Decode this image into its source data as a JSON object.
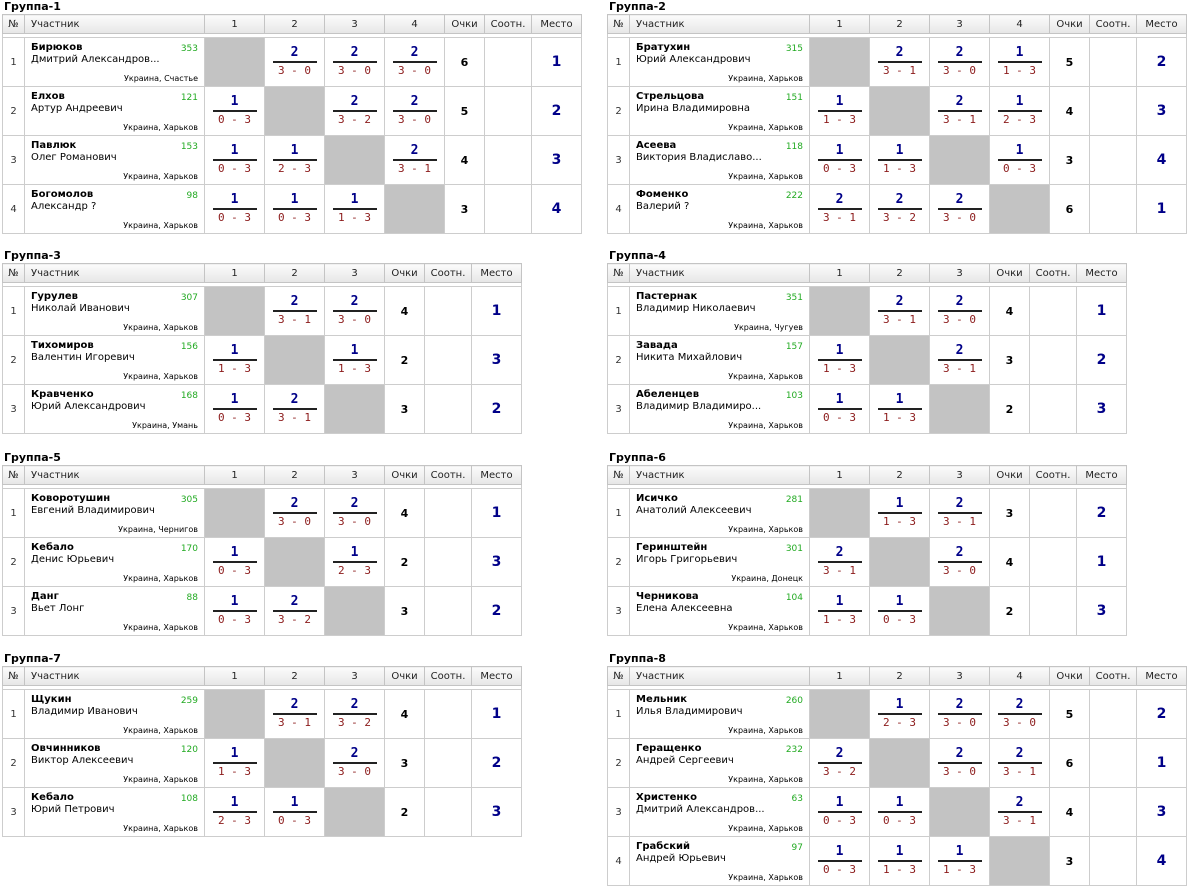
{
  "headers": {
    "no": "№",
    "participant": "Участник",
    "points": "Очки",
    "ratio": "Соотн.",
    "place": "Место"
  },
  "groups": [
    {
      "title": "Группа-1",
      "players": [
        {
          "no": "1",
          "name": "Бирюков",
          "first": "Дмитрий Александров...",
          "rating": "353",
          "loc": "Украина, Счастье",
          "scores": [
            null,
            [
              "2",
              "3 - 0"
            ],
            [
              "2",
              "3 - 0"
            ],
            [
              "2",
              "3 - 0"
            ]
          ],
          "points": "6",
          "ratio": "",
          "place": "1"
        },
        {
          "no": "2",
          "name": "Елхов",
          "first": "Артур Андреевич",
          "rating": "121",
          "loc": "Украина, Харьков",
          "scores": [
            [
              "1",
              "0 - 3"
            ],
            null,
            [
              "2",
              "3 - 2"
            ],
            [
              "2",
              "3 - 0"
            ]
          ],
          "points": "5",
          "ratio": "",
          "place": "2"
        },
        {
          "no": "3",
          "name": "Павлюк",
          "first": "Олег Романович",
          "rating": "153",
          "loc": "Украина, Харьков",
          "scores": [
            [
              "1",
              "0 - 3"
            ],
            [
              "1",
              "2 - 3"
            ],
            null,
            [
              "2",
              "3 - 1"
            ]
          ],
          "points": "4",
          "ratio": "",
          "place": "3"
        },
        {
          "no": "4",
          "name": "Богомолов",
          "first": "Александр ?",
          "rating": "98",
          "loc": "Украина, Харьков",
          "scores": [
            [
              "1",
              "0 - 3"
            ],
            [
              "1",
              "0 - 3"
            ],
            [
              "1",
              "1 - 3"
            ],
            null
          ],
          "points": "3",
          "ratio": "",
          "place": "4"
        }
      ]
    },
    {
      "title": "Группа-2",
      "players": [
        {
          "no": "1",
          "name": "Братухин",
          "first": "Юрий Александрович",
          "rating": "315",
          "loc": "Украина, Харьков",
          "scores": [
            null,
            [
              "2",
              "3 - 1"
            ],
            [
              "2",
              "3 - 0"
            ],
            [
              "1",
              "1 - 3"
            ]
          ],
          "points": "5",
          "ratio": "",
          "place": "2"
        },
        {
          "no": "2",
          "name": "Стрельцова",
          "first": "Ирина Владимировна",
          "rating": "151",
          "loc": "Украина, Харьков",
          "scores": [
            [
              "1",
              "1 - 3"
            ],
            null,
            [
              "2",
              "3 - 1"
            ],
            [
              "1",
              "2 - 3"
            ]
          ],
          "points": "4",
          "ratio": "",
          "place": "3"
        },
        {
          "no": "3",
          "name": "Асеева",
          "first": "Виктория Владиславо...",
          "rating": "118",
          "loc": "Украина, Харьков",
          "scores": [
            [
              "1",
              "0 - 3"
            ],
            [
              "1",
              "1 - 3"
            ],
            null,
            [
              "1",
              "0 - 3"
            ]
          ],
          "points": "3",
          "ratio": "",
          "place": "4"
        },
        {
          "no": "4",
          "name": "Фоменко",
          "first": "Валерий ?",
          "rating": "222",
          "loc": "Украина, Харьков",
          "scores": [
            [
              "2",
              "3 - 1"
            ],
            [
              "2",
              "3 - 2"
            ],
            [
              "2",
              "3 - 0"
            ],
            null
          ],
          "points": "6",
          "ratio": "",
          "place": "1"
        }
      ]
    },
    {
      "title": "Группа-3",
      "players": [
        {
          "no": "1",
          "name": "Гурулев",
          "first": "Николай Иванович",
          "rating": "307",
          "loc": "Украина, Харьков",
          "scores": [
            null,
            [
              "2",
              "3 - 1"
            ],
            [
              "2",
              "3 - 0"
            ]
          ],
          "points": "4",
          "ratio": "",
          "place": "1"
        },
        {
          "no": "2",
          "name": "Тихомиров",
          "first": "Валентин Игоревич",
          "rating": "156",
          "loc": "Украина, Харьков",
          "scores": [
            [
              "1",
              "1 - 3"
            ],
            null,
            [
              "1",
              "1 - 3"
            ]
          ],
          "points": "2",
          "ratio": "",
          "place": "3"
        },
        {
          "no": "3",
          "name": "Кравченко",
          "first": "Юрий Александрович",
          "rating": "168",
          "loc": "Украина, Умань",
          "scores": [
            [
              "1",
              "0 - 3"
            ],
            [
              "2",
              "3 - 1"
            ],
            null
          ],
          "points": "3",
          "ratio": "",
          "place": "2"
        }
      ]
    },
    {
      "title": "Группа-4",
      "players": [
        {
          "no": "1",
          "name": "Пастернак",
          "first": "Владимир Николаевич",
          "rating": "351",
          "loc": "Украина, Чугуев",
          "scores": [
            null,
            [
              "2",
              "3 - 1"
            ],
            [
              "2",
              "3 - 0"
            ]
          ],
          "points": "4",
          "ratio": "",
          "place": "1"
        },
        {
          "no": "2",
          "name": "Завада",
          "first": "Никита Михайлович",
          "rating": "157",
          "loc": "Украина, Харьков",
          "scores": [
            [
              "1",
              "1 - 3"
            ],
            null,
            [
              "2",
              "3 - 1"
            ]
          ],
          "points": "3",
          "ratio": "",
          "place": "2"
        },
        {
          "no": "3",
          "name": "Абеленцев",
          "first": "Владимир Владимиро...",
          "rating": "103",
          "loc": "Украина, Харьков",
          "scores": [
            [
              "1",
              "0 - 3"
            ],
            [
              "1",
              "1 - 3"
            ],
            null
          ],
          "points": "2",
          "ratio": "",
          "place": "3"
        }
      ]
    },
    {
      "title": "Группа-5",
      "players": [
        {
          "no": "1",
          "name": "Коворотушин",
          "first": "Евгений Владимирович",
          "rating": "305",
          "loc": "Украина, Чернигов",
          "scores": [
            null,
            [
              "2",
              "3 - 0"
            ],
            [
              "2",
              "3 - 0"
            ]
          ],
          "points": "4",
          "ratio": "",
          "place": "1"
        },
        {
          "no": "2",
          "name": "Кебало",
          "first": "Денис Юрьевич",
          "rating": "170",
          "loc": "Украина, Харьков",
          "scores": [
            [
              "1",
              "0 - 3"
            ],
            null,
            [
              "1",
              "2 - 3"
            ]
          ],
          "points": "2",
          "ratio": "",
          "place": "3"
        },
        {
          "no": "3",
          "name": "Данг",
          "first": "Вьет Лонг",
          "rating": "88",
          "loc": "Украина, Харьков",
          "scores": [
            [
              "1",
              "0 - 3"
            ],
            [
              "2",
              "3 - 2"
            ],
            null
          ],
          "points": "3",
          "ratio": "",
          "place": "2"
        }
      ]
    },
    {
      "title": "Группа-6",
      "players": [
        {
          "no": "1",
          "name": "Исичко",
          "first": "Анатолий Алексеевич",
          "rating": "281",
          "loc": "Украина, Харьков",
          "scores": [
            null,
            [
              "1",
              "1 - 3"
            ],
            [
              "2",
              "3 - 1"
            ]
          ],
          "points": "3",
          "ratio": "",
          "place": "2"
        },
        {
          "no": "2",
          "name": "Геринштейн",
          "first": "Игорь Григорьевич",
          "rating": "301",
          "loc": "Украина, Донецк",
          "scores": [
            [
              "2",
              "3 - 1"
            ],
            null,
            [
              "2",
              "3 - 0"
            ]
          ],
          "points": "4",
          "ratio": "",
          "place": "1"
        },
        {
          "no": "3",
          "name": "Черникова",
          "first": "Елена Алексеевна",
          "rating": "104",
          "loc": "Украина, Харьков",
          "scores": [
            [
              "1",
              "1 - 3"
            ],
            [
              "1",
              "0 - 3"
            ],
            null
          ],
          "points": "2",
          "ratio": "",
          "place": "3"
        }
      ]
    },
    {
      "title": "Группа-7",
      "players": [
        {
          "no": "1",
          "name": "Щукин",
          "first": "Владимир Иванович",
          "rating": "259",
          "loc": "Украина, Харьков",
          "scores": [
            null,
            [
              "2",
              "3 - 1"
            ],
            [
              "2",
              "3 - 2"
            ]
          ],
          "points": "4",
          "ratio": "",
          "place": "1"
        },
        {
          "no": "2",
          "name": "Овчинников",
          "first": "Виктор Алексеевич",
          "rating": "120",
          "loc": "Украина, Харьков",
          "scores": [
            [
              "1",
              "1 - 3"
            ],
            null,
            [
              "2",
              "3 - 0"
            ]
          ],
          "points": "3",
          "ratio": "",
          "place": "2"
        },
        {
          "no": "3",
          "name": "Кебало",
          "first": "Юрий Петрович",
          "rating": "108",
          "loc": "Украина, Харьков",
          "scores": [
            [
              "1",
              "2 - 3"
            ],
            [
              "1",
              "0 - 3"
            ],
            null
          ],
          "points": "2",
          "ratio": "",
          "place": "3"
        }
      ]
    },
    {
      "title": "Группа-8",
      "players": [
        {
          "no": "1",
          "name": "Мельник",
          "first": "Илья Владимирович",
          "rating": "260",
          "loc": "Украина, Харьков",
          "scores": [
            null,
            [
              "1",
              "2 - 3"
            ],
            [
              "2",
              "3 - 0"
            ],
            [
              "2",
              "3 - 0"
            ]
          ],
          "points": "5",
          "ratio": "",
          "place": "2"
        },
        {
          "no": "2",
          "name": "Геращенко",
          "first": "Андрей Сергеевич",
          "rating": "232",
          "loc": "Украина, Харьков",
          "scores": [
            [
              "2",
              "3 - 2"
            ],
            null,
            [
              "2",
              "3 - 0"
            ],
            [
              "2",
              "3 - 1"
            ]
          ],
          "points": "6",
          "ratio": "",
          "place": "1"
        },
        {
          "no": "3",
          "name": "Христенко",
          "first": "Дмитрий Александров...",
          "rating": "63",
          "loc": "Украина, Харьков",
          "scores": [
            [
              "1",
              "0 - 3"
            ],
            [
              "1",
              "0 - 3"
            ],
            null,
            [
              "2",
              "3 - 1"
            ]
          ],
          "points": "4",
          "ratio": "",
          "place": "3"
        },
        {
          "no": "4",
          "name": "Грабский",
          "first": "Андрей Юрьевич",
          "rating": "97",
          "loc": "Украина, Харьков",
          "scores": [
            [
              "1",
              "0 - 3"
            ],
            [
              "1",
              "1 - 3"
            ],
            [
              "1",
              "1 - 3"
            ],
            null
          ],
          "points": "3",
          "ratio": "",
          "place": "4"
        }
      ]
    }
  ]
}
